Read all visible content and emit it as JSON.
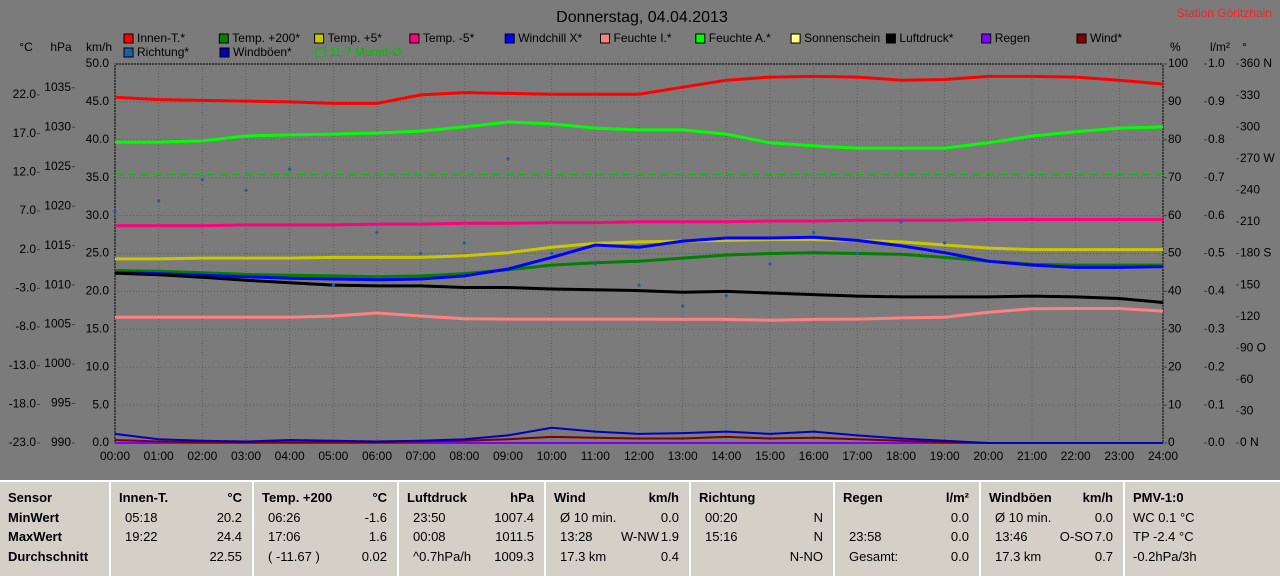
{
  "chart_data": {
    "type": "line",
    "title": "Donnerstag, 04.04.2013",
    "station": "Station Göritzhain",
    "x": [
      "00:00",
      "01:00",
      "02:00",
      "03:00",
      "04:00",
      "05:00",
      "06:00",
      "07:00",
      "08:00",
      "09:00",
      "10:00",
      "11:00",
      "12:00",
      "13:00",
      "14:00",
      "15:00",
      "16:00",
      "17:00",
      "18:00",
      "19:00",
      "20:00",
      "21:00",
      "22:00",
      "23:00",
      "24:00"
    ],
    "axes": [
      {
        "unit": "°C",
        "side": "left",
        "lim": [
          -23,
          26
        ],
        "ticks": [
          {
            "value": 22,
            "label": "22.0"
          },
          {
            "value": 17,
            "label": "17.0"
          },
          {
            "value": 12,
            "label": "12.0"
          },
          {
            "value": 7,
            "label": "7.0"
          },
          {
            "value": 2,
            "label": "2.0"
          },
          {
            "value": -3,
            "label": "-3.0"
          },
          {
            "value": -8,
            "label": "-8.0"
          },
          {
            "value": -13,
            "label": "-13.0"
          },
          {
            "value": -18,
            "label": "-18.0"
          },
          {
            "value": -23,
            "label": "-23.0"
          }
        ]
      },
      {
        "unit": "hPa",
        "side": "left",
        "lim": [
          990,
          1038
        ],
        "ticks": [
          1035,
          1030,
          1025,
          1020,
          1015,
          1010,
          1005,
          1000,
          995,
          990
        ]
      },
      {
        "unit": "km/h",
        "side": "left",
        "lim": [
          0,
          50
        ],
        "grid": true,
        "ticks": [
          {
            "value": 50,
            "label": "50.0"
          },
          {
            "value": 45,
            "label": "45.0"
          },
          {
            "value": 40,
            "label": "40.0"
          },
          {
            "value": 35,
            "label": "35.0"
          },
          {
            "value": 30,
            "label": "30.0"
          },
          {
            "value": 25,
            "label": "25.0"
          },
          {
            "value": 20,
            "label": "20.0"
          },
          {
            "value": 15,
            "label": "15.0"
          },
          {
            "value": 10,
            "label": "10.0"
          },
          {
            "value": 5,
            "label": "5.0"
          },
          {
            "value": 0,
            "label": "0.0"
          }
        ]
      },
      {
        "unit": "%",
        "side": "right",
        "lim": [
          0,
          100
        ],
        "ticks": [
          100,
          90,
          80,
          70,
          60,
          50,
          40,
          30,
          20,
          10,
          0
        ]
      },
      {
        "unit": "l/m²",
        "side": "right",
        "lim": [
          0,
          1
        ],
        "ticks": [
          {
            "value": 1,
            "label": "1.0"
          },
          0.9,
          0.8,
          0.7,
          0.6,
          0.5,
          0.4,
          0.3,
          0.2,
          0.1,
          {
            "value": 0,
            "label": "0.0"
          }
        ]
      },
      {
        "unit": "°",
        "side": "right",
        "lim": [
          0,
          360
        ],
        "ticks": [
          {
            "value": 360,
            "label": "360 N"
          },
          330,
          300,
          {
            "value": 270,
            "label": "270 W"
          },
          240,
          210,
          {
            "value": 180,
            "label": "180 S"
          },
          150,
          120,
          {
            "value": 90,
            "label": "90 O"
          },
          60,
          30,
          {
            "value": 0,
            "label": "0  N"
          }
        ]
      }
    ],
    "series": [
      {
        "name": "Innen-T.*",
        "color": "#ff0000",
        "axis": 0,
        "values": [
          21.7,
          21.4,
          21.3,
          21.2,
          21.1,
          20.9,
          20.9,
          22.0,
          22.3,
          22.2,
          22.1,
          22.1,
          22.1,
          23.0,
          23.9,
          24.3,
          24.4,
          24.3,
          23.9,
          24.0,
          24.4,
          24.4,
          24.3,
          23.9,
          23.4
        ]
      },
      {
        "name": "Temp. +200*",
        "color": "#008000",
        "axis": 0,
        "values": [
          -0.7,
          -0.8,
          -1.0,
          -1.2,
          -1.3,
          -1.4,
          -1.5,
          -1.4,
          -1.1,
          -0.6,
          0.0,
          0.3,
          0.5,
          0.9,
          1.3,
          1.5,
          1.6,
          1.5,
          1.4,
          1.0,
          0.5,
          0.1,
          0.0,
          0.0,
          0.0
        ]
      },
      {
        "name": "Temp. +5*",
        "color": "#c8c800",
        "axis": 0,
        "values": [
          0.8,
          0.8,
          0.9,
          0.9,
          0.9,
          1.0,
          1.0,
          1.0,
          1.2,
          1.6,
          2.3,
          2.8,
          3.0,
          3.1,
          3.2,
          3.3,
          3.3,
          3.2,
          3.0,
          2.6,
          2.2,
          2.0,
          2.0,
          2.0,
          2.0
        ]
      },
      {
        "name": "Temp. -5*",
        "color": "#ff0080",
        "axis": 0,
        "values": [
          5.1,
          5.1,
          5.1,
          5.2,
          5.2,
          5.2,
          5.3,
          5.3,
          5.4,
          5.4,
          5.5,
          5.5,
          5.6,
          5.6,
          5.6,
          5.7,
          5.7,
          5.8,
          5.8,
          5.8,
          5.9,
          5.9,
          5.9,
          5.9,
          5.9
        ]
      },
      {
        "name": "Windchill X*",
        "color": "#0000ff",
        "axis": 0,
        "values": [
          -1.0,
          -1.1,
          -1.3,
          -1.5,
          -1.7,
          -1.8,
          -1.9,
          -1.8,
          -1.4,
          -0.5,
          1.0,
          2.6,
          2.3,
          3.1,
          3.5,
          3.5,
          3.6,
          3.2,
          2.5,
          1.6,
          0.5,
          0.0,
          -0.3,
          -0.3,
          -0.2
        ]
      },
      {
        "name": "Feuchte I.*",
        "color": "#ff8080",
        "axis": 3,
        "values": [
          33.2,
          33.2,
          33.2,
          33.2,
          33.2,
          33.5,
          34.3,
          33.5,
          32.8,
          32.7,
          32.7,
          32.7,
          32.7,
          32.6,
          32.6,
          32.4,
          32.6,
          32.7,
          33.0,
          33.2,
          34.5,
          35.4,
          35.5,
          35.5,
          34.8
        ]
      },
      {
        "name": "Feuchte A.*",
        "color": "#00ff00",
        "axis": 3,
        "values": [
          79.4,
          79.4,
          79.7,
          81.0,
          81.3,
          81.5,
          81.8,
          82.3,
          83.4,
          84.7,
          84.2,
          83.1,
          82.6,
          82.6,
          81.5,
          79.2,
          78.4,
          77.8,
          77.8,
          77.8,
          79.2,
          81.0,
          82.1,
          83.1,
          83.4
        ]
      },
      {
        "name": "Sonnenschein",
        "color": "#ffff80",
        "axis": 3,
        "values": [
          0,
          0,
          0,
          0,
          0,
          0,
          0,
          0,
          0,
          0,
          0,
          0,
          0,
          0,
          0,
          0,
          0,
          0,
          0,
          0,
          0,
          0,
          0,
          0,
          0
        ]
      },
      {
        "name": "Luftdruck*",
        "color": "#000000",
        "axis": 1,
        "values": [
          1011.5,
          1011.3,
          1011.0,
          1010.6,
          1010.3,
          1010.0,
          1009.9,
          1009.9,
          1009.7,
          1009.7,
          1009.5,
          1009.4,
          1009.3,
          1009.1,
          1009.2,
          1009.0,
          1008.8,
          1008.6,
          1008.5,
          1008.5,
          1008.5,
          1008.6,
          1008.5,
          1008.3,
          1007.8
        ]
      },
      {
        "name": "Regen",
        "color": "#8000ff",
        "axis": 4,
        "values": [
          0,
          0,
          0,
          0,
          0,
          0,
          0,
          0,
          0,
          0,
          0,
          0,
          0,
          0,
          0,
          0,
          0,
          0,
          0,
          0,
          0,
          0,
          0,
          0,
          0
        ]
      },
      {
        "name": "Wind*",
        "color": "#800000",
        "axis": 2,
        "values": [
          0.4,
          0.2,
          0.1,
          0.1,
          0.1,
          0.1,
          0.1,
          0.2,
          0.3,
          0.5,
          0.8,
          0.7,
          0.6,
          0.6,
          0.8,
          0.6,
          0.7,
          0.5,
          0.3,
          0.1,
          0,
          0,
          0,
          0,
          0
        ]
      },
      {
        "name": "Richtung*",
        "color": "#1f5fa8",
        "axis": 5,
        "draw": "dots",
        "values": [
          220,
          230,
          250,
          240,
          260,
          150,
          200,
          180,
          190,
          270,
          180,
          170,
          150,
          130,
          140,
          170,
          200,
          180,
          210,
          190,
          null,
          null,
          null,
          null,
          null
        ]
      },
      {
        "name": "Windböen*",
        "color": "#0000c0",
        "axis": 2,
        "values": [
          1.2,
          0.5,
          0.3,
          0.2,
          0.4,
          0.3,
          0.2,
          0.3,
          0.5,
          1.0,
          2.0,
          1.5,
          1.2,
          1.3,
          1.5,
          1.2,
          1.5,
          1.0,
          0.6,
          0.3,
          0,
          0,
          0,
          0,
          0
        ]
      },
      {
        "name": "11.7 Monat-Ø",
        "color": "#00c000",
        "axis": 0,
        "draw": "hline",
        "value": 11.7
      }
    ]
  },
  "table": {
    "columns": [
      {
        "head": [
          "Sensor"
        ],
        "rows": [
          [
            "MinWert"
          ],
          [
            "MaxWert"
          ],
          [
            "Durchschnitt"
          ]
        ],
        "bold": true
      },
      {
        "head": [
          "Innen-T.",
          "°C"
        ],
        "rows": [
          [
            "05:18",
            "20.2"
          ],
          [
            "19:22",
            "24.4"
          ],
          [
            "22.55"
          ]
        ]
      },
      {
        "head": [
          "Temp. +200",
          "°C"
        ],
        "rows": [
          [
            "06:26",
            "-1.6"
          ],
          [
            "17:06",
            "1.6"
          ],
          [
            "( -11.67 )",
            "0.02"
          ]
        ]
      },
      {
        "head": [
          "Luftdruck",
          "hPa"
        ],
        "rows": [
          [
            "23:50",
            "1007.4"
          ],
          [
            "00:08",
            "1011.5"
          ],
          [
            "^0.7hPa/h",
            "1009.3"
          ]
        ]
      },
      {
        "head": [
          "Wind",
          "km/h"
        ],
        "rows": [
          [
            "Ø 10 min.",
            "0.0"
          ],
          [
            "13:28",
            "W-NW",
            "1.9"
          ],
          [
            "17.3 km",
            "0.4"
          ]
        ]
      },
      {
        "head": [
          "Richtung"
        ],
        "rows": [
          [
            "00:20",
            "N"
          ],
          [
            "15:16",
            "N"
          ],
          [
            "N-NO"
          ]
        ]
      },
      {
        "head": [
          "Regen",
          "l/m²"
        ],
        "rows": [
          [
            "0.0"
          ],
          [
            "23:58",
            "0.0"
          ],
          [
            "Gesamt:",
            "0.0"
          ]
        ]
      },
      {
        "head": [
          "Windböen",
          "km/h"
        ],
        "rows": [
          [
            "Ø 10 min.",
            "0.0"
          ],
          [
            "13:46",
            "O-SO",
            "7.0"
          ],
          [
            "17.3 km",
            "0.7"
          ]
        ]
      },
      {
        "head": [
          "PMV-1:0"
        ],
        "rows": [
          [
            "WC 0.1 °C"
          ],
          [
            "TP -2.4 °C"
          ],
          [
            "-0.2hPa/3h"
          ]
        ],
        "align": "left"
      }
    ]
  }
}
